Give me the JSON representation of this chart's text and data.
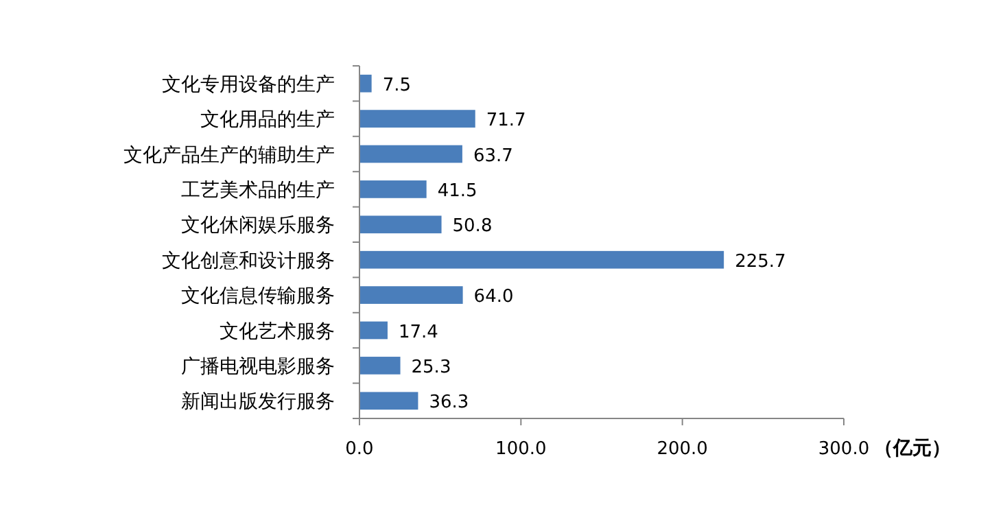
{
  "chart_data": {
    "type": "bar",
    "orientation": "horizontal",
    "categories": [
      "文化专用设备的生产",
      "文化用品的生产",
      "文化产品生产的辅助生产",
      "工艺美术品的生产",
      "文化休闲娱乐服务",
      "文化创意和设计服务",
      "文化信息传输服务",
      "文化艺术服务",
      "广播电视电影服务",
      "新闻出版发行服务"
    ],
    "values": [
      7.5,
      71.7,
      63.7,
      41.5,
      50.8,
      225.7,
      64.0,
      17.4,
      25.3,
      36.3
    ],
    "value_labels": [
      "7.5",
      "71.7",
      "63.7",
      "41.5",
      "50.8",
      "225.7",
      "64.0",
      "17.4",
      "25.3",
      "36.3"
    ],
    "color": "#4a7ebb",
    "xlim": [
      0,
      300
    ],
    "xticks": [
      {
        "value": 0,
        "label": "0.0"
      },
      {
        "value": 100,
        "label": "100.0"
      },
      {
        "value": 200,
        "label": "200.0"
      },
      {
        "value": 300,
        "label": "300.0"
      }
    ],
    "xlabel": "（亿元）",
    "grid": false
  }
}
